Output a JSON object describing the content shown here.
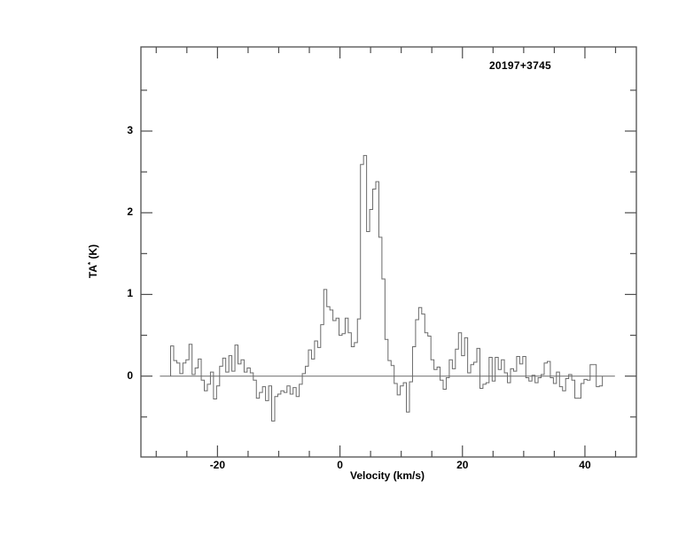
{
  "chart_data": {
    "type": "line",
    "style": "histogram-step-spectrum",
    "title": "20197+3745",
    "xlabel": "Velocity (km/s)",
    "ylabel": "TA* (K)",
    "ylabel_parts": {
      "base": "TA",
      "sup": "*",
      "rest": " (K)"
    },
    "xlim": [
      -32.5,
      48.4
    ],
    "ylim": [
      -0.99,
      4.03
    ],
    "x_major_ticks": [
      -20,
      0,
      20,
      40
    ],
    "x_minor_ticks": [
      -30,
      -25,
      -15,
      -10,
      -5,
      5,
      10,
      15,
      25,
      30,
      35,
      45
    ],
    "y_major_ticks": [
      0,
      1,
      2,
      3
    ],
    "y_minor_ticks": [
      -0.5,
      0.5,
      1.5,
      2.5,
      3.5
    ],
    "grid": "off",
    "legend": "none",
    "baseline_y": 0,
    "baseline_x_range": [
      -29.4,
      44.9
    ],
    "series": [
      {
        "name": "spectrum",
        "v_start": -27.4,
        "dv": 0.5,
        "values": [
          0.37,
          0.19,
          0.16,
          0.03,
          0.16,
          0.2,
          0.39,
          0.02,
          0.1,
          0.21,
          -0.05,
          -0.18,
          -0.1,
          0.05,
          -0.28,
          -0.12,
          0.12,
          0.22,
          0.05,
          0.25,
          0.06,
          0.38,
          0.15,
          0.2,
          0.05,
          0.1,
          0.04,
          -0.05,
          -0.27,
          -0.2,
          -0.13,
          -0.3,
          -0.12,
          -0.55,
          -0.25,
          -0.22,
          -0.18,
          -0.2,
          -0.12,
          -0.22,
          -0.14,
          -0.25,
          -0.1,
          0.03,
          0.12,
          0.32,
          0.21,
          0.43,
          0.35,
          0.63,
          1.06,
          0.85,
          0.81,
          0.68,
          0.71,
          0.5,
          0.52,
          0.71,
          0.53,
          0.36,
          0.41,
          0.7,
          2.59,
          2.7,
          1.77,
          2.04,
          2.29,
          2.38,
          1.7,
          1.19,
          0.45,
          0.19,
          0.13,
          -0.09,
          -0.23,
          -0.12,
          -0.08,
          -0.44,
          -0.07,
          0.36,
          0.69,
          0.84,
          0.76,
          0.53,
          0.49,
          0.2,
          0.08,
          0.11,
          -0.05,
          -0.16,
          -0.02,
          0.2,
          0.09,
          0.33,
          0.53,
          0.25,
          0.47,
          0.04,
          0.14,
          0.17,
          0.34,
          -0.15,
          -0.1,
          -0.08,
          0.23,
          -0.06,
          0.23,
          0.08,
          0.2,
          0.04,
          -0.08,
          0.09,
          0.06,
          0.24,
          0.15,
          0.24,
          -0.02,
          -0.06,
          0.01,
          -0.08,
          -0.02,
          0.02,
          0.16,
          0.18,
          -0.02,
          -0.09,
          0.05,
          -0.13,
          -0.18,
          -0.03,
          0.02,
          -0.05,
          -0.27,
          -0.27,
          -0.09,
          -0.04,
          -0.05,
          0.14,
          0.14,
          -0.13,
          -0.12
        ]
      }
    ],
    "colors": {
      "background": "#ffffff",
      "frame": "#4d4d4d",
      "trace": "#6a6a6a",
      "baseline": "#6a6a6a",
      "text": "#000000"
    }
  },
  "layout_note": "single spectrum panel, ticks inward on all four sides"
}
